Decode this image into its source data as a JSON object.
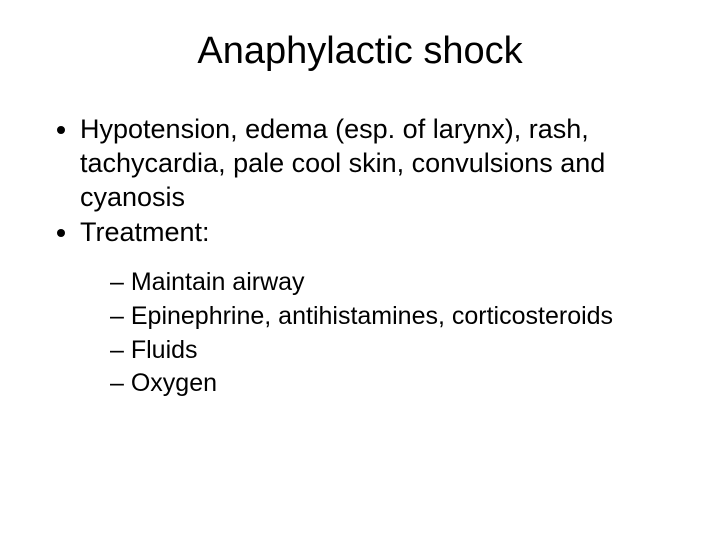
{
  "background_color": "#ffffff",
  "text_color": "#000000",
  "font_family": "Arial, Helvetica, sans-serif",
  "title": {
    "text": "Anaphylactic shock",
    "fontsize": 38,
    "align": "center"
  },
  "bullets": {
    "level1": [
      "Hypotension, edema (esp. of larynx), rash, tachycardia, pale cool skin, convulsions and cyanosis",
      "Treatment:"
    ],
    "level2": [
      "Maintain airway",
      "Epinephrine, antihistamines, corticosteroids",
      "Fluids",
      "Oxygen"
    ],
    "level1_fontsize": 27,
    "level2_fontsize": 25,
    "level1_marker": "disc",
    "level2_marker": "–"
  }
}
